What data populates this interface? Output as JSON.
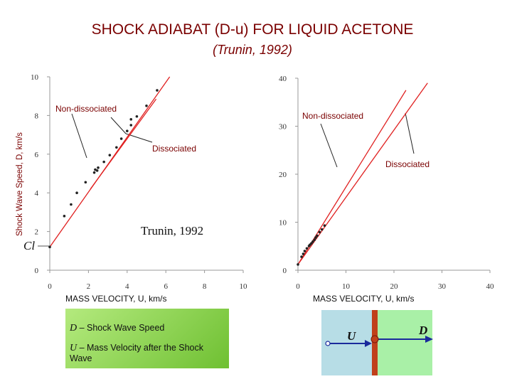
{
  "header": {
    "title": "SHOCK ADIABAT (D-u)  FOR LIQUID ACETONE",
    "subtitle": "(Trunin, 1992)"
  },
  "chart_data": [
    {
      "type": "scatter",
      "ylabel": "Shock Wave Speed, D, km/s",
      "xlabel": "MASS VELOCITY, U, km/s",
      "xlim": [
        0,
        10
      ],
      "ylim": [
        0,
        10
      ],
      "xticks": [
        "0",
        "2",
        "4",
        "6",
        "8",
        "10"
      ],
      "yticks": [
        "0",
        "2",
        "4",
        "6",
        "8",
        "10"
      ],
      "grid": false,
      "points": [
        {
          "x": 0.0,
          "y": 1.2
        },
        {
          "x": 0.75,
          "y": 2.8
        },
        {
          "x": 1.1,
          "y": 3.4
        },
        {
          "x": 1.4,
          "y": 4.0
        },
        {
          "x": 1.85,
          "y": 4.55
        },
        {
          "x": 2.3,
          "y": 5.05
        },
        {
          "x": 2.35,
          "y": 5.2
        },
        {
          "x": 2.45,
          "y": 5.15
        },
        {
          "x": 2.5,
          "y": 5.3
        },
        {
          "x": 2.8,
          "y": 5.6
        },
        {
          "x": 3.1,
          "y": 5.95
        },
        {
          "x": 3.45,
          "y": 6.35
        },
        {
          "x": 3.7,
          "y": 6.8
        },
        {
          "x": 4.0,
          "y": 7.2
        },
        {
          "x": 4.2,
          "y": 7.5
        },
        {
          "x": 4.2,
          "y": 7.8
        },
        {
          "x": 4.5,
          "y": 7.95
        },
        {
          "x": 5.0,
          "y": 8.5
        },
        {
          "x": 5.55,
          "y": 9.3
        }
      ],
      "lines": [
        {
          "x1": 0.0,
          "y1": 1.2,
          "x2": 6.2,
          "y2": 10.0
        },
        {
          "x1": 2.1,
          "y1": 4.2,
          "x2": 5.5,
          "y2": 8.85
        }
      ],
      "annotations": [
        "Non-dissociated",
        "Dissociated",
        "Trunin, 1992"
      ],
      "marker_label": "Cl"
    },
    {
      "type": "scatter",
      "xlabel": "MASS VELOCITY, U, km/s",
      "xlim": [
        0,
        40
      ],
      "ylim": [
        0,
        40
      ],
      "xticks": [
        "0",
        "10",
        "20",
        "30",
        "40"
      ],
      "yticks": [
        "0",
        "10",
        "20",
        "30",
        "40"
      ],
      "grid": false,
      "points": [
        {
          "x": 0.0,
          "y": 1.2
        },
        {
          "x": 0.75,
          "y": 2.8
        },
        {
          "x": 1.1,
          "y": 3.4
        },
        {
          "x": 1.4,
          "y": 4.0
        },
        {
          "x": 1.85,
          "y": 4.55
        },
        {
          "x": 2.3,
          "y": 5.05
        },
        {
          "x": 2.5,
          "y": 5.3
        },
        {
          "x": 2.8,
          "y": 5.6
        },
        {
          "x": 3.1,
          "y": 5.95
        },
        {
          "x": 3.45,
          "y": 6.35
        },
        {
          "x": 3.7,
          "y": 6.8
        },
        {
          "x": 4.0,
          "y": 7.2
        },
        {
          "x": 4.5,
          "y": 7.95
        },
        {
          "x": 5.0,
          "y": 8.5
        },
        {
          "x": 5.55,
          "y": 9.3
        }
      ],
      "lines": [
        {
          "x1": 0.0,
          "y1": 1.2,
          "x2": 22.5,
          "y2": 37.5
        },
        {
          "x1": 0.0,
          "y1": 1.2,
          "x2": 27.0,
          "y2": 39.0
        }
      ],
      "annotations": [
        "Non-dissociated",
        "Dissociated"
      ]
    }
  ],
  "legend": {
    "d_symbol": "D",
    "d_text": " – Shock Wave Speed",
    "u_symbol": "U",
    "u_text": " – Mass Velocity after the Shock Wave"
  },
  "wave_diagram": {
    "u_label": "U",
    "d_label": "D"
  },
  "colors": {
    "title": "#7a0000",
    "line": "#e02020",
    "point": "#222222",
    "arrow": "#1a2a9c",
    "wall": "#c0401a"
  }
}
